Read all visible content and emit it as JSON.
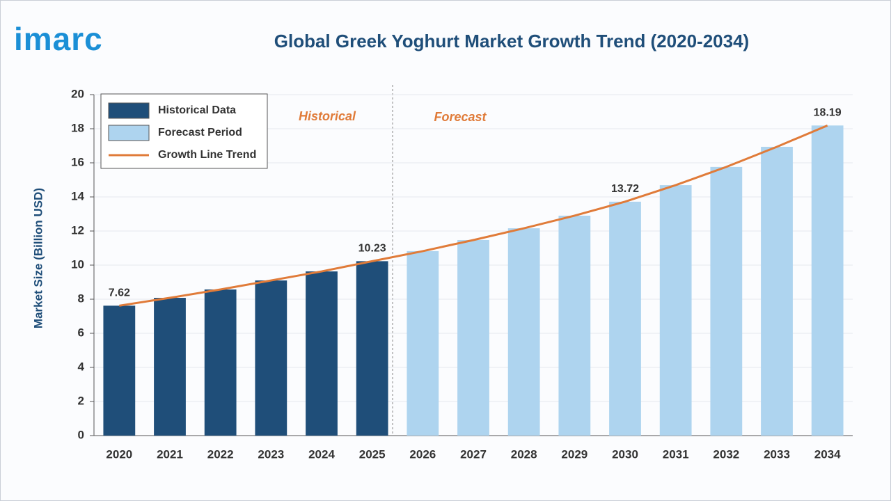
{
  "logo": "imarc",
  "chart_data": {
    "type": "bar",
    "title": "Global Greek Yoghurt Market Growth Trend (2020-2034)",
    "y_label": "Market Size (Billion USD)",
    "annotations": [
      "Historical",
      "Forecast"
    ],
    "categories": [
      "2020",
      "2021",
      "2022",
      "2023",
      "2024",
      "2025",
      "2026",
      "2027",
      "2028",
      "2029",
      "2030",
      "2031",
      "2032",
      "2033",
      "2034"
    ],
    "series": [
      {
        "name": "Historical Data",
        "color": "#1f4e79",
        "values": [
          7.62,
          8.08,
          8.57,
          9.1,
          9.63,
          10.23,
          null,
          null,
          null,
          null,
          null,
          null,
          null,
          null,
          null
        ],
        "value_labels": [
          "7.62",
          null,
          null,
          null,
          null,
          "10.23",
          null,
          null,
          null,
          null,
          null,
          null,
          null,
          null,
          null
        ]
      },
      {
        "name": "Forecast Period",
        "color": "#aed4ef",
        "values": [
          null,
          null,
          null,
          null,
          null,
          null,
          10.82,
          11.47,
          12.16,
          12.9,
          13.72,
          14.69,
          15.76,
          16.94,
          18.19
        ],
        "value_labels": [
          null,
          null,
          null,
          null,
          null,
          null,
          null,
          null,
          null,
          null,
          "13.72",
          null,
          null,
          null,
          "18.19"
        ]
      },
      {
        "name": "Growth Line Trend",
        "type": "line",
        "color": "#e07b39",
        "values": [
          7.62,
          8.08,
          8.57,
          9.1,
          9.63,
          10.23,
          10.82,
          11.47,
          12.16,
          12.9,
          13.72,
          14.69,
          15.76,
          16.94,
          18.19
        ]
      }
    ],
    "ylim": [
      0,
      20
    ],
    "yticks": [
      0,
      2,
      4,
      6,
      8,
      10,
      12,
      14,
      16,
      18,
      20
    ],
    "grid": true,
    "legend": "top-left"
  }
}
